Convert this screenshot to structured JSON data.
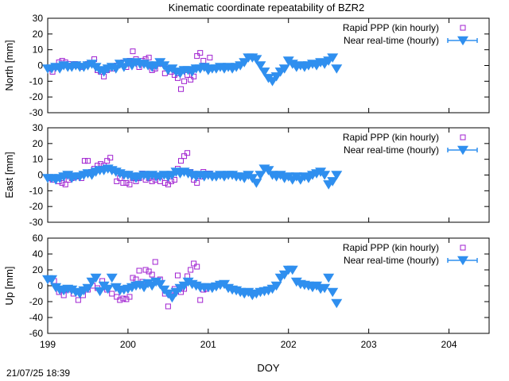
{
  "title": "Kinematic coordinate repeatability of BZR2",
  "footer_timestamp": "21/07/25 18:39",
  "colors": {
    "rapid": "#a020d0",
    "nrt": "#2f8fef",
    "axis": "#000000"
  },
  "chart_data": [
    {
      "type": "scatter",
      "ylabel": "North [mm]",
      "ylim": [
        -30,
        30
      ],
      "yticks": [
        "30",
        "20",
        "10",
        "0",
        "-10",
        "-20",
        "-30"
      ],
      "xlim": [
        199,
        204.5
      ],
      "legend": "top-right",
      "series": [
        {
          "name": "Rapid PPP (kin hourly)",
          "marker": "open-square",
          "x": [
            199.02,
            199.06,
            199.1,
            199.14,
            199.18,
            199.22,
            199.26,
            199.3,
            199.34,
            199.38,
            199.42,
            199.5,
            199.58,
            199.62,
            199.66,
            199.7,
            199.74,
            199.8,
            199.86,
            199.9,
            199.94,
            199.98,
            200.02,
            200.06,
            200.1,
            200.14,
            200.18,
            200.22,
            200.26,
            200.3,
            200.34,
            200.4,
            200.46,
            200.5,
            200.54,
            200.58,
            200.62,
            200.66,
            200.7,
            200.74,
            200.78,
            200.82,
            200.86,
            200.9,
            200.94,
            200.98,
            201.02
          ],
          "y": [
            -2,
            -4,
            -1,
            2,
            3,
            2,
            1,
            0,
            1,
            0,
            -1,
            1,
            4,
            -3,
            -4,
            -7,
            -3,
            -2,
            0,
            1,
            2,
            -1,
            3,
            9,
            4,
            -1,
            3,
            4,
            5,
            -3,
            -2,
            1,
            -5,
            -2,
            -4,
            -6,
            -8,
            -15,
            -10,
            -6,
            -9,
            -7,
            6,
            8,
            3,
            -1,
            5
          ]
        },
        {
          "name": "Near real-time (hourly)",
          "marker": "filled-triangle-down",
          "x": [
            199.0,
            199.05,
            199.1,
            199.15,
            199.2,
            199.25,
            199.3,
            199.35,
            199.4,
            199.45,
            199.5,
            199.55,
            199.6,
            199.65,
            199.7,
            199.75,
            199.8,
            199.85,
            199.9,
            199.95,
            200.0,
            200.05,
            200.1,
            200.15,
            200.2,
            200.25,
            200.3,
            200.35,
            200.4,
            200.45,
            200.5,
            200.55,
            200.6,
            200.65,
            200.7,
            200.75,
            200.8,
            200.85,
            200.9,
            200.95,
            201.0,
            201.05,
            201.1,
            201.15,
            201.2,
            201.25,
            201.3,
            201.35,
            201.4,
            201.45,
            201.5,
            201.55,
            201.6,
            201.65,
            201.7,
            201.75,
            201.8,
            201.85,
            201.9,
            201.95,
            202.0,
            202.05,
            202.1,
            202.15,
            202.2,
            202.25,
            202.3,
            202.35,
            202.4,
            202.45,
            202.5,
            202.55,
            202.6
          ],
          "y": [
            -2,
            -2,
            -1,
            -2,
            0,
            -1,
            -1,
            0,
            -1,
            -1,
            0,
            1,
            -1,
            -3,
            -4,
            -2,
            -1,
            -2,
            1,
            -1,
            2,
            0,
            2,
            1,
            1,
            0,
            -1,
            0,
            2,
            0,
            -3,
            -2,
            -4,
            -5,
            -3,
            -3,
            -4,
            -2,
            -2,
            -1,
            -3,
            -2,
            -2,
            -1,
            -2,
            -1,
            -2,
            -1,
            0,
            2,
            5,
            5,
            4,
            0,
            -4,
            -8,
            -10,
            -7,
            -4,
            -2,
            3,
            1,
            -1,
            0,
            -1,
            0,
            1,
            0,
            2,
            1,
            3,
            5,
            -2
          ]
        }
      ]
    },
    {
      "type": "scatter",
      "ylabel": "East [mm]",
      "ylim": [
        -30,
        30
      ],
      "yticks": [
        "30",
        "20",
        "10",
        "0",
        "-10",
        "-20",
        "-30"
      ],
      "xlim": [
        199,
        204.5
      ],
      "legend": "top-right",
      "series": [
        {
          "name": "Rapid PPP (kin hourly)",
          "marker": "open-square",
          "x": [
            199.02,
            199.06,
            199.1,
            199.14,
            199.18,
            199.22,
            199.26,
            199.3,
            199.34,
            199.38,
            199.42,
            199.46,
            199.5,
            199.54,
            199.58,
            199.62,
            199.66,
            199.7,
            199.74,
            199.78,
            199.82,
            199.86,
            199.9,
            199.94,
            199.98,
            200.02,
            200.06,
            200.1,
            200.14,
            200.18,
            200.22,
            200.26,
            200.3,
            200.34,
            200.4,
            200.46,
            200.5,
            200.54,
            200.58,
            200.62,
            200.66,
            200.7,
            200.74,
            200.78,
            200.82,
            200.86,
            200.9,
            200.94,
            200.98,
            201.02
          ],
          "y": [
            -2,
            -3,
            -2,
            -4,
            -5,
            -6,
            -3,
            -2,
            -1,
            -1,
            -2,
            9,
            9,
            2,
            4,
            6,
            7,
            6,
            9,
            11,
            3,
            -4,
            -2,
            -5,
            -5,
            -6,
            -2,
            -4,
            -2,
            1,
            -3,
            -2,
            -4,
            -3,
            -4,
            -5,
            -6,
            -4,
            -3,
            4,
            9,
            12,
            14,
            2,
            -3,
            -5,
            -1,
            2,
            1,
            1
          ]
        },
        {
          "name": "Near real-time (hourly)",
          "marker": "filled-triangle-down",
          "x": [
            199.0,
            199.05,
            199.1,
            199.15,
            199.2,
            199.25,
            199.3,
            199.35,
            199.4,
            199.45,
            199.5,
            199.55,
            199.6,
            199.65,
            199.7,
            199.75,
            199.8,
            199.85,
            199.9,
            199.95,
            200.0,
            200.05,
            200.1,
            200.15,
            200.2,
            200.25,
            200.3,
            200.35,
            200.4,
            200.45,
            200.5,
            200.55,
            200.6,
            200.65,
            200.7,
            200.75,
            200.8,
            200.85,
            200.9,
            200.95,
            201.0,
            201.05,
            201.1,
            201.15,
            201.2,
            201.25,
            201.3,
            201.35,
            201.4,
            201.45,
            201.5,
            201.55,
            201.6,
            201.65,
            201.7,
            201.75,
            201.8,
            201.85,
            201.9,
            201.95,
            202.0,
            202.05,
            202.1,
            202.15,
            202.2,
            202.25,
            202.3,
            202.35,
            202.4,
            202.45,
            202.5,
            202.55,
            202.6
          ],
          "y": [
            -2,
            -2,
            -3,
            -2,
            -1,
            0,
            -2,
            -1,
            -1,
            0,
            1,
            0,
            2,
            3,
            3,
            4,
            3,
            2,
            1,
            0,
            0,
            -1,
            -2,
            -1,
            0,
            -1,
            0,
            -1,
            -1,
            0,
            -1,
            0,
            2,
            1,
            2,
            1,
            0,
            -1,
            0,
            -1,
            0,
            -1,
            -1,
            0,
            -1,
            0,
            0,
            -1,
            -1,
            -2,
            0,
            -2,
            -5,
            0,
            4,
            3,
            0,
            -1,
            0,
            -2,
            -1,
            -3,
            -1,
            -3,
            -1,
            -2,
            0,
            1,
            2,
            0,
            -6,
            -4,
            0
          ]
        }
      ]
    },
    {
      "type": "scatter",
      "ylabel": "Up [mm]",
      "ylim": [
        -60,
        60
      ],
      "yticks": [
        "60",
        "40",
        "20",
        "0",
        "-20",
        "-40",
        "-60"
      ],
      "xlim": [
        199,
        204.5
      ],
      "xticks": [
        "199",
        "200",
        "201",
        "202",
        "203",
        "204"
      ],
      "xlabel": "DOY",
      "legend": "top-right",
      "series": [
        {
          "name": "Rapid PPP (kin hourly)",
          "marker": "open-square",
          "x": [
            199.02,
            199.08,
            199.14,
            199.2,
            199.26,
            199.32,
            199.38,
            199.44,
            199.5,
            199.56,
            199.62,
            199.68,
            199.74,
            199.8,
            199.86,
            199.9,
            199.94,
            199.98,
            200.02,
            200.06,
            200.1,
            200.14,
            200.18,
            200.22,
            200.26,
            200.3,
            200.34,
            200.4,
            200.46,
            200.5,
            200.54,
            200.58,
            200.62,
            200.66,
            200.7,
            200.74,
            200.78,
            200.82,
            200.86,
            200.9,
            200.94,
            200.98
          ],
          "y": [
            8,
            6,
            -8,
            -12,
            -5,
            -10,
            -18,
            -12,
            -5,
            0,
            -3,
            6,
            -5,
            -10,
            -14,
            -18,
            -16,
            -17,
            -14,
            10,
            8,
            19,
            5,
            20,
            18,
            14,
            30,
            8,
            -10,
            -26,
            -12,
            -4,
            13,
            -8,
            -4,
            12,
            20,
            28,
            24,
            -18,
            -5,
            -4
          ]
        },
        {
          "name": "Near real-time (hourly)",
          "marker": "filled-triangle-down",
          "x": [
            199.0,
            199.05,
            199.1,
            199.15,
            199.2,
            199.25,
            199.3,
            199.35,
            199.4,
            199.45,
            199.5,
            199.55,
            199.6,
            199.65,
            199.7,
            199.75,
            199.8,
            199.85,
            199.9,
            199.95,
            200.0,
            200.05,
            200.1,
            200.15,
            200.2,
            200.25,
            200.3,
            200.35,
            200.4,
            200.45,
            200.5,
            200.55,
            200.6,
            200.65,
            200.7,
            200.75,
            200.8,
            200.85,
            200.9,
            200.95,
            201.0,
            201.05,
            201.1,
            201.15,
            201.2,
            201.25,
            201.3,
            201.35,
            201.4,
            201.45,
            201.5,
            201.55,
            201.6,
            201.65,
            201.7,
            201.75,
            201.8,
            201.85,
            201.9,
            201.95,
            202.0,
            202.05,
            202.1,
            202.15,
            202.2,
            202.25,
            202.3,
            202.35,
            202.4,
            202.45,
            202.5,
            202.55,
            202.6
          ],
          "y": [
            8,
            8,
            -2,
            -5,
            -6,
            -4,
            -5,
            -8,
            -10,
            -6,
            -3,
            5,
            10,
            -7,
            0,
            -4,
            10,
            -2,
            -6,
            -5,
            -4,
            -2,
            0,
            1,
            -2,
            3,
            0,
            5,
            2,
            -5,
            -10,
            -15,
            -8,
            -3,
            0,
            5,
            2,
            0,
            -2,
            -2,
            -2,
            -3,
            -1,
            1,
            2,
            -3,
            -5,
            -6,
            -8,
            -10,
            -8,
            -12,
            -10,
            -8,
            -7,
            -6,
            -4,
            0,
            10,
            14,
            20,
            20,
            5,
            2,
            1,
            0,
            -2,
            0,
            -4,
            -3,
            10,
            -8,
            -22
          ]
        }
      ]
    }
  ]
}
